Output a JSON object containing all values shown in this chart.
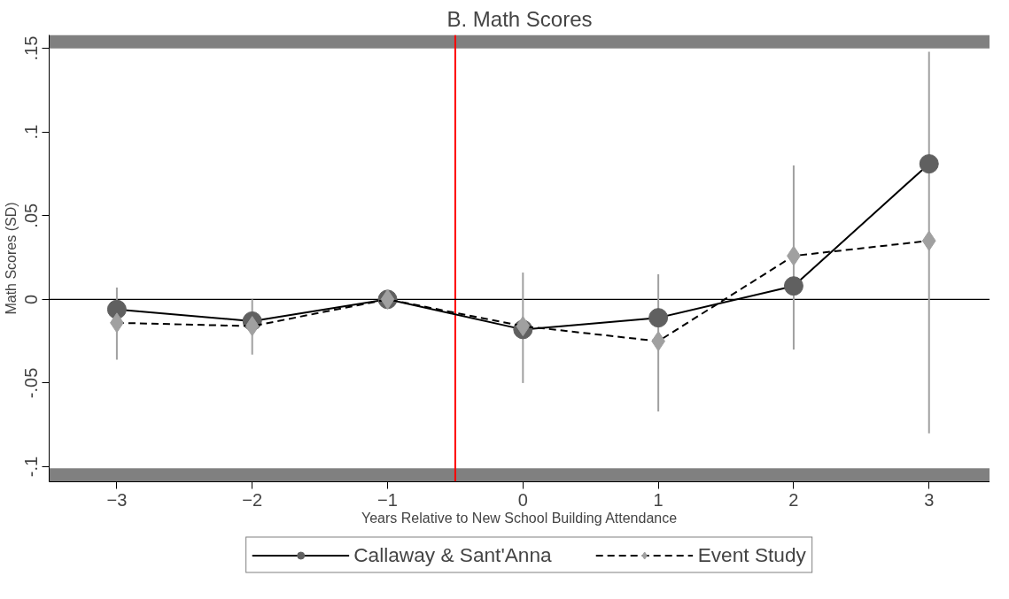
{
  "chart_data": {
    "type": "line",
    "title": "B. Math Scores",
    "xlabel": "Years Relative to New School Building Attendance",
    "ylabel": "Math Scores (SD)",
    "x": [
      -3,
      -2,
      -1,
      0,
      1,
      2,
      3
    ],
    "series": [
      {
        "name": "Callaway & Sant'Anna",
        "color": "#606060",
        "marker": "circle",
        "line_style": "solid",
        "values": [
          -0.006,
          -0.013,
          0,
          -0.018,
          -0.011,
          0.008,
          0.081
        ]
      },
      {
        "name": "Event Study",
        "color": "#a0a0a0",
        "marker": "diamond",
        "line_style": "dashed",
        "values": [
          -0.014,
          -0.016,
          0,
          -0.016,
          -0.025,
          0.026,
          0.035
        ],
        "errors": [
          [
            -0.036,
            0.007
          ],
          [
            -0.033,
            0.0
          ],
          null,
          [
            -0.05,
            0.016
          ],
          [
            -0.067,
            0.015
          ],
          [
            -0.03,
            0.08
          ],
          [
            -0.08,
            0.148
          ]
        ]
      }
    ],
    "xlim": [
      -3.5,
      3.45
    ],
    "ylim": [
      -0.109,
      0.158
    ],
    "xticks": [
      -3,
      -2,
      -1,
      0,
      1,
      2,
      3
    ],
    "yticks": [
      {
        "value": -0.1,
        "label": "-.1"
      },
      {
        "value": -0.05,
        "label": "-.05"
      },
      {
        "value": 0,
        "label": "0"
      },
      {
        "value": 0.05,
        "label": ".05"
      },
      {
        "value": 0.1,
        "label": ".1"
      },
      {
        "value": 0.15,
        "label": ".15"
      }
    ],
    "ref_lines": [
      {
        "axis": "x",
        "value": -0.5,
        "color": "#ff0000"
      },
      {
        "axis": "y",
        "value": 0,
        "color": "#000000"
      }
    ],
    "bands": [
      {
        "axis": "y",
        "from": 0.15,
        "to": 0.158,
        "color": "#808080"
      },
      {
        "axis": "y",
        "from": -0.109,
        "to": -0.101,
        "color": "#808080"
      }
    ],
    "grid": false,
    "legend": "bottom"
  }
}
